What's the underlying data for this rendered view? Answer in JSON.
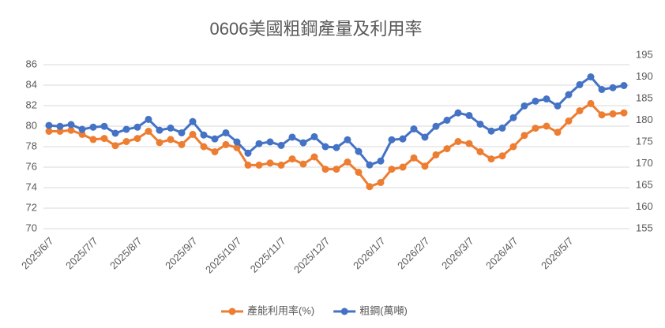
{
  "chart_data": {
    "type": "line",
    "title": "0606美國粗鋼產量及利用率",
    "categories": [
      "2025/6/7",
      null,
      null,
      null,
      "2025/7/7",
      null,
      null,
      null,
      "2025/8/7",
      null,
      null,
      null,
      null,
      "2025/9/7",
      null,
      null,
      null,
      "2025/10/7",
      null,
      null,
      null,
      "2025/11/7",
      null,
      null,
      null,
      "2025/12/7",
      null,
      null,
      null,
      null,
      "2026/1/7",
      null,
      null,
      null,
      "2026/2/7",
      null,
      null,
      null,
      "2026/3/7",
      null,
      null,
      null,
      "2026/4/7",
      null,
      null,
      null,
      null,
      "2026/5/7",
      null,
      null,
      null,
      null,
      null
    ],
    "series": [
      {
        "name": "產能利用率(%)",
        "color": "#ed7d31",
        "values": [
          79.5,
          79.5,
          79.6,
          79.2,
          78.7,
          78.8,
          78.1,
          78.5,
          78.8,
          79.5,
          78.4,
          78.7,
          78.2,
          79.2,
          78.0,
          77.5,
          78.2,
          77.9,
          76.2,
          76.2,
          76.4,
          76.2,
          76.8,
          76.3,
          77.0,
          75.8,
          75.8,
          76.5,
          75.5,
          74.1,
          74.5,
          75.8,
          76.0,
          76.9,
          76.1,
          77.2,
          77.8,
          78.5,
          78.3,
          77.5,
          76.8,
          77.1,
          78.0,
          79.1,
          79.8,
          80.0,
          79.4,
          80.5,
          81.5,
          82.2,
          81.1,
          81.2,
          81.3
        ]
      },
      {
        "name": "粗鋼(萬噸)",
        "color": "#4472c4",
        "axis": "y2",
        "values": [
          178.8,
          178.6,
          179.0,
          177.9,
          178.4,
          178.6,
          177.0,
          177.9,
          178.4,
          180.2,
          177.7,
          178.2,
          177.1,
          179.7,
          176.6,
          175.7,
          177.1,
          175.0,
          172.4,
          174.6,
          175.0,
          174.2,
          176.1,
          174.8,
          176.2,
          173.9,
          173.7,
          175.5,
          172.8,
          169.7,
          170.6,
          175.5,
          175.7,
          178.0,
          176.1,
          178.6,
          180.0,
          181.7,
          181.1,
          179.1,
          177.5,
          178.2,
          180.6,
          183.3,
          184.4,
          184.9,
          183.3,
          185.9,
          188.2,
          190.0,
          187.1,
          187.5,
          188.0
        ]
      }
    ],
    "ylim": [
      70,
      86
    ],
    "yticks": [
      70,
      72,
      74,
      76,
      78,
      80,
      82,
      84,
      86
    ],
    "y2lim": [
      155,
      195
    ],
    "y2ticks": [
      155,
      160,
      165,
      170,
      175,
      180,
      185,
      190,
      195
    ],
    "grid": true,
    "legend": "bottom"
  }
}
